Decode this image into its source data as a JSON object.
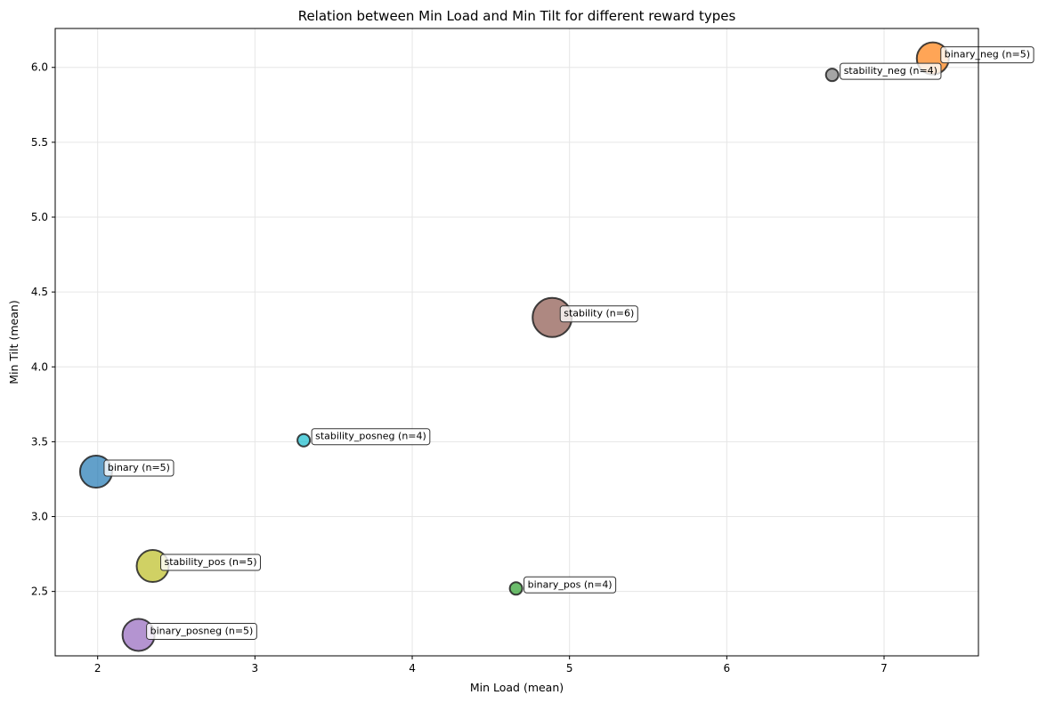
{
  "chart_data": {
    "type": "scatter",
    "title": "Relation between Min Load and Min Tilt for different reward types",
    "xlabel": "Min Load (mean)",
    "ylabel": "Min Tilt (mean)",
    "xlim": [
      1.73,
      7.6
    ],
    "ylim": [
      2.07,
      6.26
    ],
    "x_ticks": [
      2,
      3,
      4,
      5,
      6,
      7
    ],
    "y_ticks": [
      2.5,
      3.0,
      3.5,
      4.0,
      4.5,
      5.0,
      5.5,
      6.0
    ],
    "x_tick_labels": [
      "2",
      "3",
      "4",
      "5",
      "6",
      "7"
    ],
    "y_tick_labels": [
      "2.5",
      "3.0",
      "3.5",
      "4.0",
      "4.5",
      "5.0",
      "5.5",
      "6.0"
    ],
    "grid": true,
    "size_encodes": "n",
    "points": [
      {
        "name": "binary",
        "label": "binary (n=5)",
        "x": 1.99,
        "y": 3.3,
        "n": 5,
        "color": "#1f77b4"
      },
      {
        "name": "binary_neg",
        "label": "binary_neg (n=5)",
        "x": 7.31,
        "y": 6.06,
        "n": 5,
        "color": "#ff7f0e"
      },
      {
        "name": "binary_pos",
        "label": "binary_pos (n=4)",
        "x": 4.66,
        "y": 2.52,
        "n": 4,
        "color": "#2ca02c"
      },
      {
        "name": "binary_posneg",
        "label": "binary_posneg (n=5)",
        "x": 2.26,
        "y": 2.21,
        "n": 5,
        "color": "#9467bd"
      },
      {
        "name": "stability",
        "label": "stability (n=6)",
        "x": 4.89,
        "y": 4.33,
        "n": 6,
        "color": "#8c564b"
      },
      {
        "name": "stability_neg",
        "label": "stability_neg (n=4)",
        "x": 6.67,
        "y": 5.95,
        "n": 4,
        "color": "#7f7f7f"
      },
      {
        "name": "stability_pos",
        "label": "stability_pos (n=5)",
        "x": 2.35,
        "y": 2.67,
        "n": 5,
        "color": "#bcbd22"
      },
      {
        "name": "stability_posneg",
        "label": "stability_posneg (n=4)",
        "x": 3.31,
        "y": 3.51,
        "n": 4,
        "color": "#17becf"
      }
    ]
  }
}
